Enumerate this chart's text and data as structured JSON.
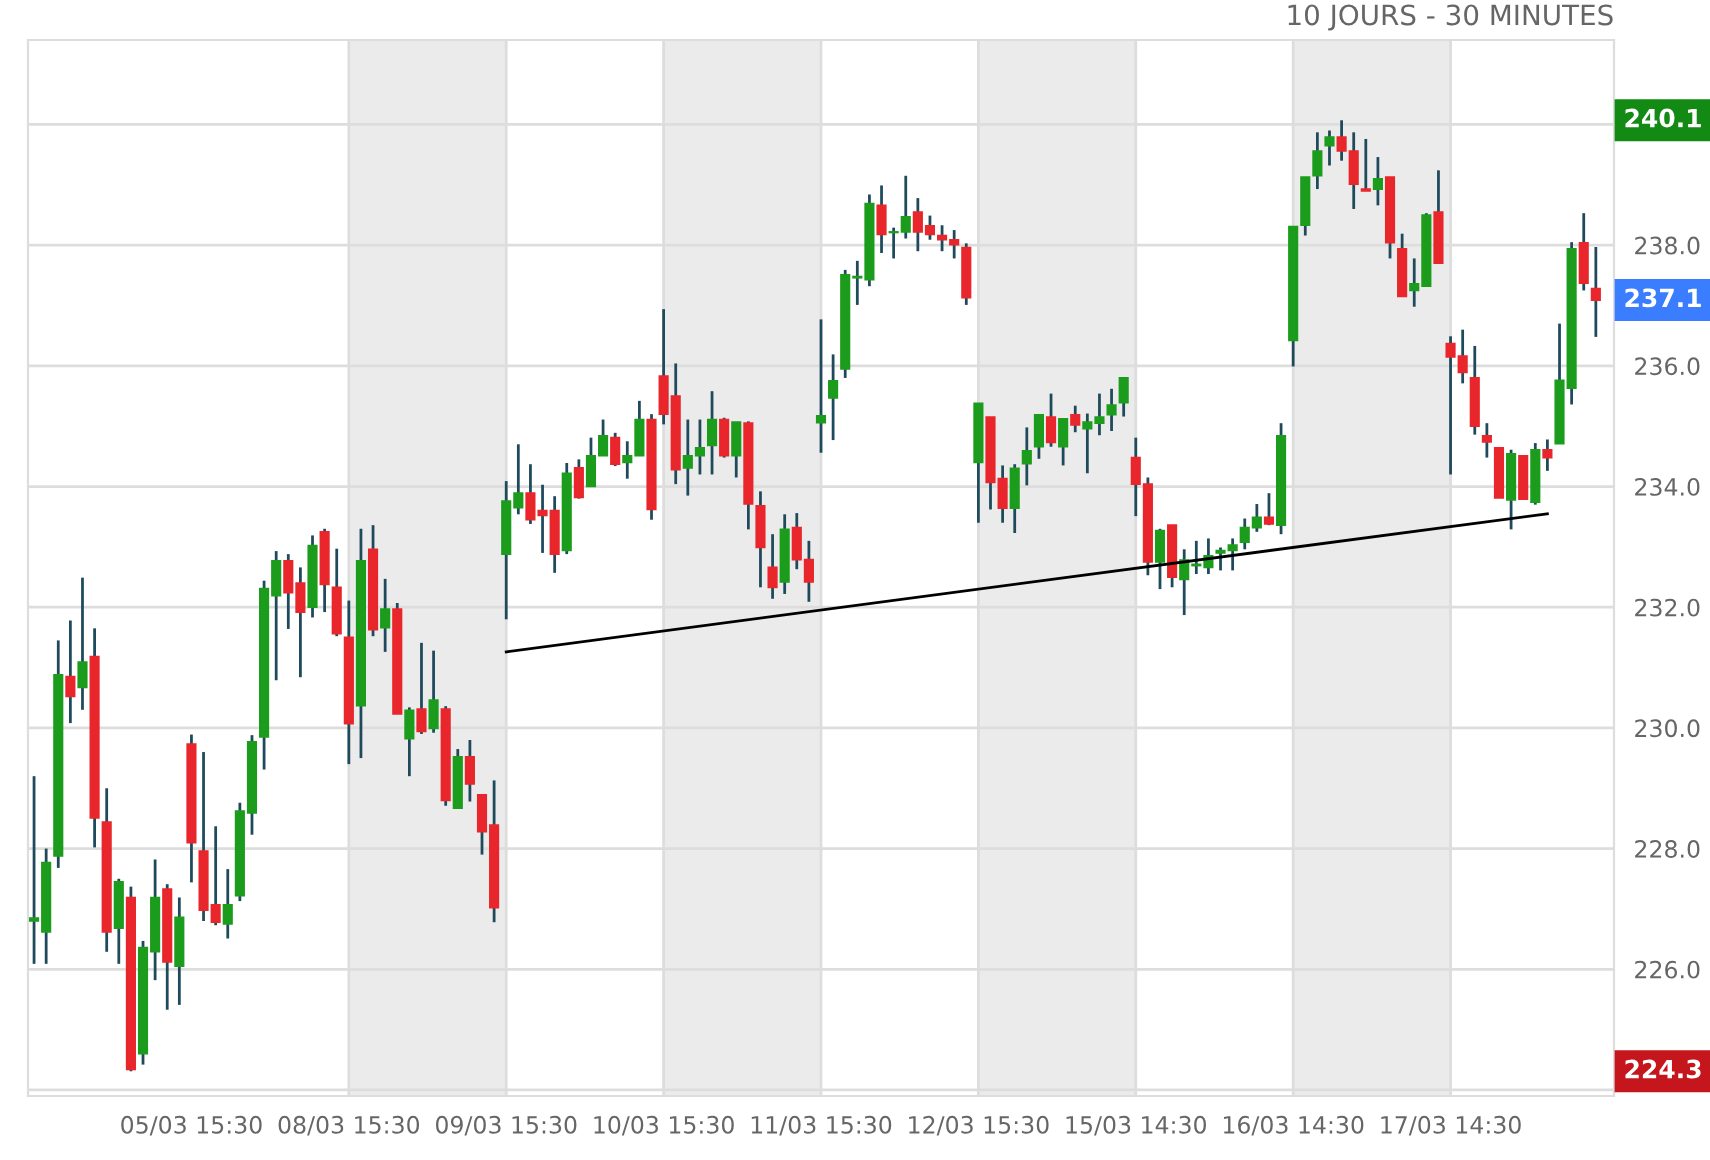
{
  "chart_data": {
    "type": "candlestick",
    "subtitle": "10 JOURS - 30 MINUTES",
    "categories": [
      null,
      null,
      null,
      null,
      null,
      null,
      null,
      null,
      null,
      null,
      null,
      null,
      null,
      "05/03 15:30",
      null,
      null,
      null,
      null,
      null,
      null,
      null,
      null,
      null,
      null,
      null,
      null,
      "08/03 15:30",
      null,
      null,
      null,
      null,
      null,
      null,
      null,
      null,
      null,
      null,
      null,
      null,
      "09/03 15:30",
      null,
      null,
      null,
      null,
      null,
      null,
      null,
      null,
      null,
      null,
      null,
      null,
      "10/03 15:30",
      null,
      null,
      null,
      null,
      null,
      null,
      null,
      null,
      null,
      null,
      null,
      null,
      "11/03 15:30",
      null,
      null,
      null,
      null,
      null,
      null,
      null,
      null,
      null,
      null,
      null,
      null,
      "12/03 15:30",
      null,
      null,
      null,
      null,
      null,
      null,
      null,
      null,
      null,
      null,
      null,
      null,
      "15/03 14:30",
      null,
      null,
      null,
      null,
      null,
      null,
      null,
      null,
      null,
      null,
      null,
      null,
      "16/03 14:30",
      null,
      null,
      null,
      null,
      null,
      null,
      null,
      null,
      null,
      null,
      null,
      null,
      "17/03 14:30",
      null,
      null,
      null,
      null,
      null,
      null,
      null,
      null,
      null,
      null,
      null,
      null
    ],
    "ohlc": [
      [
        226.8,
        229.2,
        226.09,
        226.85
      ],
      [
        226.62,
        228.0,
        226.09,
        227.77
      ],
      [
        227.88,
        231.45,
        227.68,
        230.88
      ],
      [
        230.85,
        231.78,
        230.08,
        230.52
      ],
      [
        230.67,
        232.49,
        230.3,
        231.09
      ],
      [
        231.18,
        231.65,
        228.02,
        228.51
      ],
      [
        228.44,
        229.0,
        226.29,
        226.62
      ],
      [
        226.68,
        227.5,
        226.09,
        227.45
      ],
      [
        227.19,
        227.37,
        224.31,
        224.34
      ],
      [
        224.6,
        226.47,
        224.42,
        226.36
      ],
      [
        226.29,
        227.82,
        225.82,
        227.19
      ],
      [
        227.33,
        227.41,
        225.33,
        226.12
      ],
      [
        226.05,
        227.19,
        225.41,
        226.86
      ],
      [
        229.73,
        229.89,
        227.44,
        228.1
      ],
      [
        227.96,
        229.6,
        226.8,
        226.98
      ],
      [
        227.07,
        228.37,
        226.73,
        226.78
      ],
      [
        226.75,
        227.66,
        226.51,
        227.07
      ],
      [
        227.22,
        228.76,
        227.13,
        228.62
      ],
      [
        228.59,
        229.88,
        228.23,
        229.77
      ],
      [
        229.85,
        232.44,
        229.31,
        232.31
      ],
      [
        232.19,
        232.93,
        230.79,
        232.77
      ],
      [
        232.77,
        232.88,
        231.64,
        232.24
      ],
      [
        232.4,
        232.66,
        230.84,
        231.92
      ],
      [
        232.0,
        233.19,
        231.83,
        233.02
      ],
      [
        233.25,
        233.3,
        231.92,
        232.38
      ],
      [
        232.33,
        232.97,
        231.52,
        231.56
      ],
      [
        231.5,
        232.11,
        229.4,
        230.07
      ],
      [
        230.37,
        233.3,
        229.5,
        232.77
      ],
      [
        232.96,
        233.36,
        231.52,
        231.63
      ],
      [
        231.66,
        232.47,
        231.26,
        231.97
      ],
      [
        231.97,
        232.07,
        230.23,
        230.23
      ],
      [
        229.82,
        230.34,
        229.2,
        230.29
      ],
      [
        230.31,
        231.41,
        229.9,
        229.94
      ],
      [
        229.99,
        231.28,
        229.92,
        230.46
      ],
      [
        230.31,
        230.36,
        228.71,
        228.8
      ],
      [
        228.67,
        229.65,
        228.67,
        229.52
      ],
      [
        229.52,
        229.8,
        228.78,
        229.07
      ],
      [
        228.89,
        228.89,
        227.9,
        228.28
      ],
      [
        228.39,
        229.13,
        226.78,
        227.02
      ],
      [
        232.88,
        234.09,
        231.8,
        233.76
      ],
      [
        233.65,
        234.7,
        233.54,
        233.89
      ],
      [
        233.89,
        234.37,
        233.38,
        233.45
      ],
      [
        233.6,
        234.03,
        232.9,
        233.52
      ],
      [
        233.6,
        233.84,
        232.57,
        232.88
      ],
      [
        232.94,
        234.39,
        232.88,
        234.22
      ],
      [
        234.31,
        234.45,
        233.8,
        233.82
      ],
      [
        234.0,
        234.81,
        234.0,
        234.51
      ],
      [
        234.51,
        235.11,
        234.51,
        234.84
      ],
      [
        234.81,
        234.89,
        234.34,
        234.37
      ],
      [
        234.4,
        234.75,
        234.13,
        234.51
      ],
      [
        234.51,
        235.42,
        234.51,
        235.11
      ],
      [
        235.11,
        235.2,
        233.45,
        233.62
      ],
      [
        235.83,
        236.94,
        235.03,
        235.2
      ],
      [
        235.5,
        236.04,
        234.04,
        234.28
      ],
      [
        234.31,
        235.11,
        233.85,
        234.51
      ],
      [
        234.51,
        235.11,
        234.2,
        234.64
      ],
      [
        234.68,
        235.58,
        234.2,
        235.11
      ],
      [
        235.11,
        235.14,
        234.48,
        234.51
      ],
      [
        234.51,
        235.07,
        234.15,
        235.07
      ],
      [
        235.05,
        235.08,
        233.29,
        233.71
      ],
      [
        233.68,
        233.92,
        232.33,
        232.99
      ],
      [
        232.66,
        233.21,
        232.14,
        232.33
      ],
      [
        232.42,
        233.54,
        232.22,
        233.29
      ],
      [
        233.32,
        233.56,
        232.63,
        232.79
      ],
      [
        232.79,
        233.1,
        232.09,
        232.42
      ],
      [
        235.06,
        236.77,
        234.56,
        235.17
      ],
      [
        235.47,
        236.19,
        234.77,
        235.75
      ],
      [
        235.95,
        237.59,
        235.8,
        237.51
      ],
      [
        237.46,
        237.74,
        237.01,
        237.48
      ],
      [
        237.43,
        238.84,
        237.32,
        238.69
      ],
      [
        238.66,
        238.99,
        237.87,
        238.18
      ],
      [
        238.21,
        238.29,
        237.78,
        238.22
      ],
      [
        238.22,
        239.15,
        238.11,
        238.47
      ],
      [
        238.55,
        238.78,
        237.9,
        238.22
      ],
      [
        238.32,
        238.49,
        238.09,
        238.18
      ],
      [
        238.16,
        238.33,
        237.9,
        238.09
      ],
      [
        238.09,
        238.25,
        237.78,
        238.01
      ],
      [
        237.96,
        238.03,
        237.01,
        237.13
      ],
      [
        234.4,
        235.38,
        233.4,
        235.38
      ],
      [
        235.15,
        235.15,
        233.62,
        234.07
      ],
      [
        234.13,
        234.35,
        233.4,
        233.64
      ],
      [
        233.64,
        234.37,
        233.23,
        234.3
      ],
      [
        234.38,
        234.98,
        234.02,
        234.59
      ],
      [
        234.66,
        235.19,
        234.46,
        235.19
      ],
      [
        235.15,
        235.54,
        234.66,
        234.73
      ],
      [
        234.66,
        235.12,
        234.35,
        235.12
      ],
      [
        235.19,
        235.34,
        234.9,
        235.02
      ],
      [
        234.96,
        235.21,
        234.22,
        235.07
      ],
      [
        235.05,
        235.54,
        234.85,
        235.15
      ],
      [
        235.19,
        235.62,
        234.92,
        235.35
      ],
      [
        235.39,
        235.8,
        235.16,
        235.8
      ],
      [
        234.48,
        234.81,
        233.51,
        234.04
      ],
      [
        234.04,
        234.15,
        232.53,
        232.75
      ],
      [
        232.75,
        233.3,
        232.3,
        233.27
      ],
      [
        233.36,
        233.36,
        232.33,
        232.5
      ],
      [
        232.46,
        232.96,
        231.87,
        232.78
      ],
      [
        232.69,
        233.1,
        232.55,
        232.71
      ],
      [
        232.66,
        233.14,
        232.55,
        232.85
      ],
      [
        232.9,
        232.99,
        232.61,
        232.94
      ],
      [
        232.94,
        233.14,
        232.61,
        233.03
      ],
      [
        233.08,
        233.47,
        232.96,
        233.32
      ],
      [
        233.32,
        233.71,
        233.25,
        233.49
      ],
      [
        233.49,
        233.89,
        233.36,
        233.38
      ],
      [
        233.36,
        235.05,
        233.21,
        234.84
      ],
      [
        236.42,
        238.31,
        235.99,
        238.31
      ],
      [
        238.33,
        239.13,
        238.16,
        239.13
      ],
      [
        239.15,
        239.87,
        238.93,
        239.56
      ],
      [
        239.65,
        239.9,
        239.32,
        239.79
      ],
      [
        239.79,
        240.07,
        239.4,
        239.56
      ],
      [
        239.56,
        239.87,
        238.6,
        239.01
      ],
      [
        238.93,
        239.76,
        238.9,
        238.9
      ],
      [
        238.93,
        239.46,
        238.66,
        239.1
      ],
      [
        239.13,
        239.13,
        237.78,
        238.04
      ],
      [
        237.94,
        238.19,
        237.15,
        237.15
      ],
      [
        237.25,
        237.78,
        236.98,
        237.36
      ],
      [
        237.32,
        238.53,
        237.32,
        238.5
      ],
      [
        238.55,
        239.24,
        237.7,
        237.7
      ],
      [
        236.37,
        236.49,
        234.2,
        236.15
      ],
      [
        236.16,
        236.6,
        235.71,
        235.89
      ],
      [
        235.8,
        236.33,
        234.86,
        235.0
      ],
      [
        234.84,
        235.05,
        234.48,
        234.74
      ],
      [
        234.64,
        234.64,
        233.81,
        233.81
      ],
      [
        233.78,
        234.61,
        233.29,
        234.54
      ],
      [
        234.51,
        234.51,
        233.79,
        233.79
      ],
      [
        233.74,
        234.72,
        233.7,
        234.61
      ],
      [
        234.61,
        234.78,
        234.26,
        234.48
      ],
      [
        234.71,
        236.7,
        234.71,
        235.76
      ],
      [
        235.63,
        238.05,
        235.36,
        237.94
      ],
      [
        238.04,
        238.53,
        237.25,
        237.37
      ],
      [
        237.28,
        237.97,
        236.48,
        237.09
      ]
    ],
    "colors": [
      "#1c9c1c",
      "#1c9c1c",
      "#1c9c1c",
      "#e8262b",
      "#1c9c1c",
      "#e8262b",
      "#e8262b",
      "#1c9c1c",
      "#e8262b",
      "#1c9c1c",
      "#1c9c1c",
      "#e8262b",
      "#1c9c1c",
      "#e8262b",
      "#e8262b",
      "#e8262b",
      "#1c9c1c",
      "#1c9c1c",
      "#1c9c1c",
      "#1c9c1c",
      "#1c9c1c",
      "#e8262b",
      "#e8262b",
      "#1c9c1c",
      "#e8262b",
      "#e8262b",
      "#e8262b",
      "#1c9c1c",
      "#e8262b",
      "#1c9c1c",
      "#e8262b",
      "#1c9c1c",
      "#e8262b",
      "#1c9c1c",
      "#e8262b",
      "#1c9c1c",
      "#e8262b",
      "#e8262b",
      "#e8262b",
      "#1c9c1c",
      "#1c9c1c",
      "#e8262b",
      "#e8262b",
      "#e8262b",
      "#1c9c1c",
      "#e8262b",
      "#1c9c1c",
      "#1c9c1c",
      "#e8262b",
      "#1c9c1c",
      "#1c9c1c",
      "#e8262b",
      "#e8262b",
      "#e8262b",
      "#1c9c1c",
      "#1c9c1c",
      "#1c9c1c",
      "#e8262b",
      "#1c9c1c",
      "#e8262b",
      "#e8262b",
      "#e8262b",
      "#1c9c1c",
      "#e8262b",
      "#e8262b",
      "#1c9c1c",
      "#1c9c1c",
      "#1c9c1c",
      "#1c9c1c",
      "#1c9c1c",
      "#e8262b",
      "#1c9c1c",
      "#1c9c1c",
      "#e8262b",
      "#e8262b",
      "#e8262b",
      "#e8262b",
      "#e8262b",
      "#1c9c1c",
      "#e8262b",
      "#e8262b",
      "#1c9c1c",
      "#1c9c1c",
      "#1c9c1c",
      "#e8262b",
      "#1c9c1c",
      "#e8262b",
      "#1c9c1c",
      "#1c9c1c",
      "#1c9c1c",
      "#1c9c1c",
      "#e8262b",
      "#e8262b",
      "#1c9c1c",
      "#e8262b",
      "#1c9c1c",
      "#1c9c1c",
      "#1c9c1c",
      "#1c9c1c",
      "#1c9c1c",
      "#1c9c1c",
      "#1c9c1c",
      "#e8262b",
      "#1c9c1c",
      "#1c9c1c",
      "#1c9c1c",
      "#1c9c1c",
      "#1c9c1c",
      "#e8262b",
      "#e8262b",
      "#e8262b",
      "#1c9c1c",
      "#e8262b",
      "#e8262b",
      "#1c9c1c",
      "#1c9c1c",
      "#e8262b",
      "#e8262b",
      "#e8262b",
      "#e8262b",
      "#e8262b",
      "#e8262b",
      "#1c9c1c",
      "#e8262b",
      "#1c9c1c",
      "#e8262b",
      "#1c9c1c",
      "#1c9c1c",
      "#e8262b",
      "#e8262b"
    ],
    "series": [
      {
        "type": "line",
        "color": "#000000",
        "values": [
          null,
          null,
          null,
          null,
          null,
          null,
          null,
          null,
          null,
          null,
          null,
          null,
          null,
          null,
          null,
          null,
          null,
          null,
          null,
          null,
          null,
          null,
          null,
          null,
          null,
          null,
          null,
          null,
          null,
          null,
          null,
          null,
          null,
          null,
          null,
          null,
          null,
          null,
          null,
          231.26,
          null,
          null,
          null,
          null,
          null,
          null,
          null,
          null,
          null,
          null,
          null,
          null,
          null,
          null,
          null,
          null,
          null,
          null,
          null,
          null,
          null,
          null,
          null,
          null,
          null,
          null,
          null,
          null,
          null,
          null,
          null,
          null,
          null,
          null,
          null,
          null,
          null,
          null,
          null,
          null,
          null,
          null,
          null,
          null,
          null,
          null,
          null,
          null,
          null,
          null,
          null,
          null,
          null,
          null,
          null,
          null,
          null,
          null,
          null,
          null,
          null,
          null,
          null,
          null,
          null,
          null,
          null,
          null,
          null,
          null,
          null,
          null,
          null,
          null,
          null,
          null,
          null,
          null,
          null,
          null,
          null,
          null,
          null,
          null,
          null,
          233.55,
          null,
          null,
          null,
          null
        ]
      }
    ],
    "ylim": [
      223.9,
      241.4
    ],
    "yticks": [
      {
        "value": 224,
        "label": null
      },
      {
        "value": 226,
        "label": "226.0"
      },
      {
        "value": 228,
        "label": "228.0"
      },
      {
        "value": 230,
        "label": "230.0"
      },
      {
        "value": 232,
        "label": "232.0"
      },
      {
        "value": 234,
        "label": "234.0"
      },
      {
        "value": 236,
        "label": "236.0"
      },
      {
        "value": 238,
        "label": "238.0"
      },
      {
        "value": 240,
        "label": null
      }
    ],
    "bands": [
      {
        "axis": "x",
        "from": "08/03 15:30",
        "to": "09/03 15:30",
        "color": "#ebebeb"
      },
      {
        "axis": "x",
        "from": "10/03 15:30",
        "to": "11/03 15:30",
        "color": "#ebebeb"
      },
      {
        "axis": "x",
        "from": "12/03 15:30",
        "to": "15/03 14:30",
        "color": "#ebebeb"
      },
      {
        "axis": "x",
        "from": "16/03 14:30",
        "to": "17/03 14:30",
        "color": "#ebebeb"
      }
    ],
    "annotations": [
      "240.1",
      "237.1",
      "224.3"
    ],
    "grid": true,
    "legend": false
  }
}
